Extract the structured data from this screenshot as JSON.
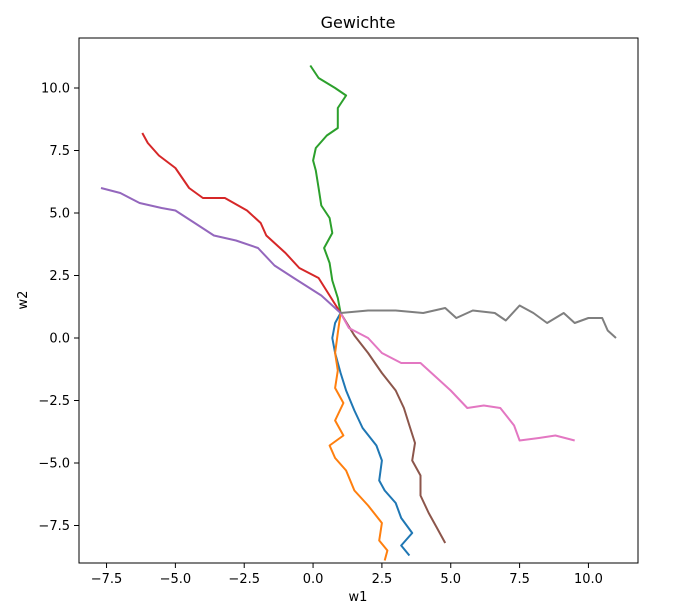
{
  "chart_data": {
    "type": "line",
    "title": "Gewichte",
    "xlabel": "w1",
    "ylabel": "w2",
    "xlim": [
      -8.5,
      11.8
    ],
    "ylim": [
      -9.0,
      12.0
    ],
    "x_ticks": [
      -7.5,
      -5.0,
      -2.5,
      0.0,
      2.5,
      5.0,
      7.5,
      10.0
    ],
    "x_tick_labels": [
      "−7.5",
      "−5.0",
      "−2.5",
      "0.0",
      "2.5",
      "5.0",
      "7.5",
      "10.0"
    ],
    "y_ticks": [
      -7.5,
      -5.0,
      -2.5,
      0.0,
      2.5,
      5.0,
      7.5,
      10.0
    ],
    "y_tick_labels": [
      "−7.5",
      "−5.0",
      "−2.5",
      "0.0",
      "2.5",
      "5.0",
      "7.5",
      "10.0"
    ],
    "grid": false,
    "legend": "none",
    "series": [
      {
        "color": "#1f77b4",
        "points": [
          [
            1.0,
            1.0
          ],
          [
            0.8,
            0.6
          ],
          [
            0.7,
            0.0
          ],
          [
            0.8,
            -0.6
          ],
          [
            1.0,
            -1.4
          ],
          [
            1.2,
            -2.1
          ],
          [
            1.5,
            -2.9
          ],
          [
            1.8,
            -3.6
          ],
          [
            2.3,
            -4.3
          ],
          [
            2.5,
            -4.9
          ],
          [
            2.4,
            -5.7
          ],
          [
            2.6,
            -6.1
          ],
          [
            3.0,
            -6.6
          ],
          [
            3.2,
            -7.2
          ],
          [
            3.6,
            -7.8
          ],
          [
            3.2,
            -8.3
          ],
          [
            3.5,
            -8.7
          ]
        ]
      },
      {
        "color": "#ff7f0e",
        "points": [
          [
            1.0,
            1.0
          ],
          [
            0.9,
            0.2
          ],
          [
            0.8,
            -0.6
          ],
          [
            0.9,
            -1.3
          ],
          [
            0.8,
            -2.0
          ],
          [
            1.1,
            -2.6
          ],
          [
            0.8,
            -3.3
          ],
          [
            1.1,
            -3.9
          ],
          [
            0.6,
            -4.3
          ],
          [
            0.8,
            -4.8
          ],
          [
            1.2,
            -5.3
          ],
          [
            1.5,
            -6.1
          ],
          [
            2.0,
            -6.7
          ],
          [
            2.5,
            -7.4
          ],
          [
            2.4,
            -8.1
          ],
          [
            2.7,
            -8.5
          ],
          [
            2.6,
            -8.9
          ]
        ]
      },
      {
        "color": "#2ca02c",
        "points": [
          [
            1.0,
            1.0
          ],
          [
            0.9,
            1.6
          ],
          [
            0.7,
            2.3
          ],
          [
            0.6,
            3.0
          ],
          [
            0.4,
            3.6
          ],
          [
            0.7,
            4.2
          ],
          [
            0.6,
            4.8
          ],
          [
            0.3,
            5.3
          ],
          [
            0.2,
            6.0
          ],
          [
            0.1,
            6.7
          ],
          [
            0.0,
            7.1
          ],
          [
            0.1,
            7.6
          ],
          [
            0.5,
            8.1
          ],
          [
            0.9,
            8.4
          ],
          [
            0.9,
            9.2
          ],
          [
            1.2,
            9.7
          ],
          [
            0.8,
            10.0
          ],
          [
            0.2,
            10.4
          ],
          [
            -0.1,
            10.9
          ]
        ]
      },
      {
        "color": "#d62728",
        "points": [
          [
            1.0,
            1.0
          ],
          [
            0.6,
            1.7
          ],
          [
            0.2,
            2.4
          ],
          [
            -0.5,
            2.8
          ],
          [
            -1.0,
            3.4
          ],
          [
            -1.7,
            4.1
          ],
          [
            -1.9,
            4.6
          ],
          [
            -2.4,
            5.1
          ],
          [
            -3.2,
            5.6
          ],
          [
            -4.0,
            5.6
          ],
          [
            -4.5,
            6.0
          ],
          [
            -5.0,
            6.8
          ],
          [
            -5.6,
            7.3
          ],
          [
            -6.0,
            7.8
          ],
          [
            -6.2,
            8.2
          ]
        ]
      },
      {
        "color": "#9467bd",
        "points": [
          [
            1.0,
            1.0
          ],
          [
            0.3,
            1.7
          ],
          [
            -0.7,
            2.4
          ],
          [
            -1.4,
            2.9
          ],
          [
            -2.0,
            3.6
          ],
          [
            -2.8,
            3.9
          ],
          [
            -3.6,
            4.1
          ],
          [
            -4.3,
            4.6
          ],
          [
            -5.0,
            5.1
          ],
          [
            -5.5,
            5.2
          ],
          [
            -6.3,
            5.4
          ],
          [
            -7.0,
            5.8
          ],
          [
            -7.7,
            6.0
          ]
        ]
      },
      {
        "color": "#8c564b",
        "points": [
          [
            1.0,
            1.0
          ],
          [
            1.5,
            0.1
          ],
          [
            2.0,
            -0.6
          ],
          [
            2.5,
            -1.4
          ],
          [
            3.0,
            -2.1
          ],
          [
            3.3,
            -2.8
          ],
          [
            3.5,
            -3.5
          ],
          [
            3.7,
            -4.2
          ],
          [
            3.6,
            -4.9
          ],
          [
            3.9,
            -5.5
          ],
          [
            3.9,
            -6.3
          ],
          [
            4.2,
            -7.0
          ],
          [
            4.5,
            -7.6
          ],
          [
            4.8,
            -8.2
          ]
        ]
      },
      {
        "color": "#e377c2",
        "points": [
          [
            1.0,
            1.0
          ],
          [
            1.3,
            0.4
          ],
          [
            2.0,
            0.0
          ],
          [
            2.5,
            -0.6
          ],
          [
            3.2,
            -1.0
          ],
          [
            3.9,
            -1.0
          ],
          [
            4.5,
            -1.6
          ],
          [
            5.0,
            -2.1
          ],
          [
            5.6,
            -2.8
          ],
          [
            6.2,
            -2.7
          ],
          [
            6.8,
            -2.8
          ],
          [
            7.3,
            -3.5
          ],
          [
            7.5,
            -4.1
          ],
          [
            8.2,
            -4.0
          ],
          [
            8.8,
            -3.9
          ],
          [
            9.5,
            -4.1
          ]
        ]
      },
      {
        "color": "#7f7f7f",
        "points": [
          [
            1.0,
            1.0
          ],
          [
            2.0,
            1.1
          ],
          [
            3.0,
            1.1
          ],
          [
            4.0,
            1.0
          ],
          [
            4.8,
            1.2
          ],
          [
            5.2,
            0.8
          ],
          [
            5.8,
            1.1
          ],
          [
            6.6,
            1.0
          ],
          [
            7.0,
            0.7
          ],
          [
            7.5,
            1.3
          ],
          [
            8.0,
            1.0
          ],
          [
            8.5,
            0.6
          ],
          [
            9.1,
            1.0
          ],
          [
            9.5,
            0.6
          ],
          [
            10.0,
            0.8
          ],
          [
            10.5,
            0.8
          ],
          [
            10.7,
            0.3
          ],
          [
            11.0,
            0.0
          ]
        ]
      }
    ]
  }
}
